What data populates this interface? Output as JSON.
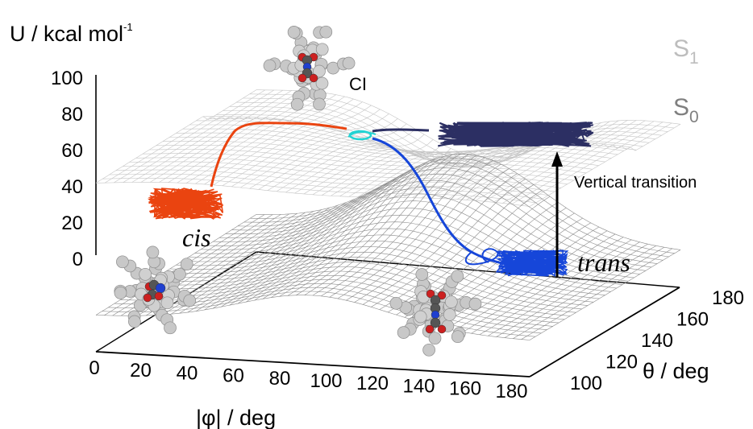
{
  "chart_data": {
    "type": "surface",
    "zlabel_main": "U  /  kcal mol",
    "zlabel_sup": "-1",
    "xlabel": "|φ|  /  deg",
    "ylabel": "θ  /  deg",
    "z_ticks": [
      "100",
      "80",
      "60",
      "40",
      "20",
      "0"
    ],
    "x_ticks": [
      "0",
      "20",
      "40",
      "60",
      "80",
      "100",
      "120",
      "140",
      "160",
      "180"
    ],
    "y_ticks": [
      "100",
      "120",
      "140",
      "160",
      "180"
    ],
    "xlim": [
      0,
      180
    ],
    "ylim": [
      90,
      180
    ],
    "zlim": [
      0,
      100
    ],
    "surfaces": [
      {
        "label_main": "S",
        "label_sub": "1",
        "color": "#bdbdbd",
        "approx_level_low": 62,
        "approx_level_high": 100
      },
      {
        "label_main": "S",
        "label_sub": "0",
        "color": "#7f7f7f",
        "approx_level_cis": 20,
        "approx_level_ci": 66,
        "approx_level_trans": 20
      }
    ],
    "annotations": {
      "ci": "CI",
      "cis": "cis",
      "trans": "trans",
      "vertical": "Vertical transition"
    },
    "trajectories": [
      {
        "phase": "S0 cis basin",
        "color": "#ea4410"
      },
      {
        "phase": "S1 cis to CI",
        "color": "#ea4410"
      },
      {
        "phase": "at conical intersection",
        "color": "#22d3d3"
      },
      {
        "phase": "S1 trans region",
        "color": "#2c2f63"
      },
      {
        "phase": "S0 relaxation to trans",
        "color": "#1646d9"
      }
    ]
  }
}
